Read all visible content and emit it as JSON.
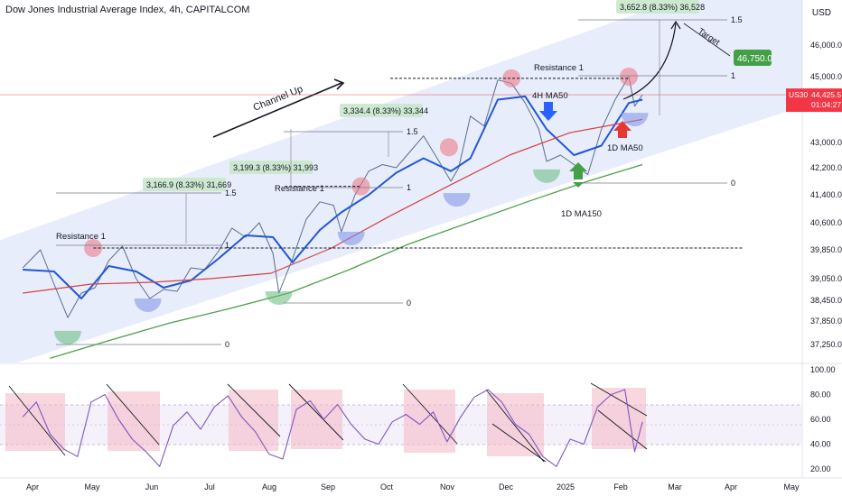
{
  "header": {
    "title": "Dow Jones Industrial Average Index, 4h, CAPITALCOM",
    "currency": "USD"
  },
  "price_tag": {
    "symbol": "US30",
    "value": "44,425.5",
    "countdown": "01:04:27"
  },
  "chart_data": [
    {
      "type": "line",
      "title": "",
      "x_labels": [
        "Apr",
        "May",
        "Jun",
        "Jul",
        "Aug",
        "Sep",
        "Oct",
        "Nov",
        "Dec",
        "2025",
        "Feb",
        "Mar",
        "Apr",
        "May"
      ],
      "y_ticks": [
        "46,000.0",
        "45,000.0",
        "43,000.0",
        "42,200.0",
        "41,400.0",
        "40,600.0",
        "39,850.0",
        "39,050.0",
        "38,450.0",
        "37,850.0",
        "37,250.0"
      ],
      "ylim": [
        36600,
        47200
      ],
      "series": [
        {
          "name": "",
          "color": "#5a6e8a",
          "x": [
            "Mar 27",
            "Apr 5",
            "Apr 12",
            "Apr 19",
            "Apr 26",
            "May 3",
            "May 10",
            "May 17",
            "May 24",
            "May 31",
            "Jun 7",
            "Jun 14",
            "Jun 21",
            "Jun 28",
            "Jul 5",
            "Jul 12",
            "Jul 19",
            "Jul 26",
            "Aug 2",
            "Aug 5",
            "Aug 12",
            "Aug 19",
            "Aug 26",
            "Sep 2",
            "Sep 6",
            "Sep 13",
            "Sep 20",
            "Sep 27",
            "Oct 4",
            "Oct 11",
            "Oct 18",
            "Oct 25",
            "Nov 1",
            "Nov 5",
            "Nov 11",
            "Nov 18",
            "Nov 25",
            "Dec 2",
            "Dec 9",
            "Dec 16",
            "Dec 20",
            "Dec 27",
            "Jan 3",
            "Jan 10",
            "Jan 17",
            "Jan 24",
            "Jan 31",
            "Feb 3",
            "Feb 7"
          ],
          "values": [
            39350,
            39850,
            38900,
            37950,
            38650,
            38800,
            39550,
            39950,
            39050,
            38500,
            38750,
            38700,
            39350,
            39300,
            39800,
            40450,
            40200,
            40600,
            39750,
            38650,
            39600,
            40700,
            41200,
            41100,
            40350,
            41400,
            42100,
            42300,
            42200,
            42700,
            43200,
            42500,
            41800,
            42200,
            43800,
            43500,
            44900,
            44800,
            44200,
            43400,
            42400,
            42600,
            42300,
            42000,
            43400,
            44300,
            45000,
            44100,
            44450
          ]
        },
        {
          "name": "4H MA50",
          "color": "#2457d6",
          "x": [
            "Mar 27",
            "Apr 12",
            "Apr 26",
            "May 10",
            "May 24",
            "Jun 7",
            "Jun 21",
            "Jul 5",
            "Jul 19",
            "Aug 2",
            "Aug 12",
            "Aug 26",
            "Sep 6",
            "Sep 20",
            "Oct 4",
            "Oct 18",
            "Nov 1",
            "Nov 11",
            "Nov 25",
            "Dec 9",
            "Dec 20",
            "Jan 3",
            "Jan 17",
            "Jan 31",
            "Feb 7"
          ],
          "values": [
            39300,
            39250,
            38500,
            39400,
            39250,
            38800,
            39000,
            39600,
            40250,
            40200,
            39500,
            40400,
            40900,
            41400,
            42050,
            42500,
            42100,
            42500,
            44300,
            44400,
            43400,
            42600,
            42900,
            44200,
            44300
          ]
        },
        {
          "name": "",
          "color": "#d84040",
          "x": [
            "Mar 27",
            "May 1",
            "Jun 1",
            "Jul 1",
            "Aug 1",
            "Sep 1",
            "Oct 1",
            "Nov 1",
            "Dec 1",
            "Jan 1",
            "Feb 7"
          ],
          "values": [
            38650,
            38900,
            38950,
            39050,
            39200,
            39900,
            40800,
            41700,
            42600,
            43300,
            43700
          ]
        },
        {
          "name": "1D MA150",
          "color": "#4aa04a",
          "x": [
            "Apr 10",
            "May 10",
            "Jun 10",
            "Jul 10",
            "Aug 10",
            "Sep 10",
            "Oct 10",
            "Nov 10",
            "Dec 10",
            "Jan 10",
            "Feb 7"
          ],
          "values": [
            36900,
            37350,
            37800,
            38200,
            38650,
            39300,
            40000,
            40600,
            41200,
            41800,
            42300
          ]
        }
      ],
      "annotations": {
        "channel_label": "Channel Up",
        "resistance_label": "Resistance 1",
        "fib_0": "0",
        "fib_1": "1",
        "fib_15": "1.5",
        "measures": [
          "3,166.9 (8.33%) 31,669",
          "3,199.3 (8.33%) 31,993",
          "3,334.4 (8.33%) 33,344",
          "3,652.8 (8.33%) 36,528"
        ],
        "target_label": "Target",
        "target_value": "46,750.0",
        "ma_4h": "4H MA50",
        "ma_1d50": "1D MA50",
        "ma_1d150": "1D MA150"
      }
    },
    {
      "type": "line",
      "title": "",
      "y_ticks": [
        "100.00",
        "80.00",
        "60.00",
        "40.00",
        "20.00"
      ],
      "ylim": [
        15,
        105
      ],
      "series": [
        {
          "name": "",
          "color": "#7e57c2",
          "x": [
            "Mar 27",
            "Apr 3",
            "Apr 10",
            "Apr 17",
            "Apr 24",
            "May 1",
            "May 8",
            "May 15",
            "May 22",
            "May 29",
            "Jun 5",
            "Jun 12",
            "Jun 19",
            "Jun 26",
            "Jul 3",
            "Jul 10",
            "Jul 17",
            "Jul 24",
            "Jul 31",
            "Aug 7",
            "Aug 14",
            "Aug 21",
            "Aug 28",
            "Sep 4",
            "Sep 11",
            "Sep 18",
            "Sep 25",
            "Oct 2",
            "Oct 9",
            "Oct 16",
            "Oct 23",
            "Oct 30",
            "Nov 6",
            "Nov 13",
            "Nov 20",
            "Nov 27",
            "Dec 4",
            "Dec 11",
            "Dec 18",
            "Dec 25",
            "Jan 1",
            "Jan 8",
            "Jan 15",
            "Jan 22",
            "Jan 29",
            "Feb 3",
            "Feb 7"
          ],
          "values": [
            62,
            74,
            48,
            36,
            30,
            74,
            80,
            60,
            44,
            34,
            22,
            55,
            66,
            52,
            70,
            79,
            62,
            50,
            32,
            28,
            68,
            75,
            60,
            72,
            56,
            44,
            40,
            58,
            64,
            56,
            66,
            42,
            62,
            78,
            84,
            74,
            56,
            48,
            30,
            22,
            44,
            40,
            70,
            80,
            84,
            34,
            58
          ]
        }
      ]
    }
  ]
}
